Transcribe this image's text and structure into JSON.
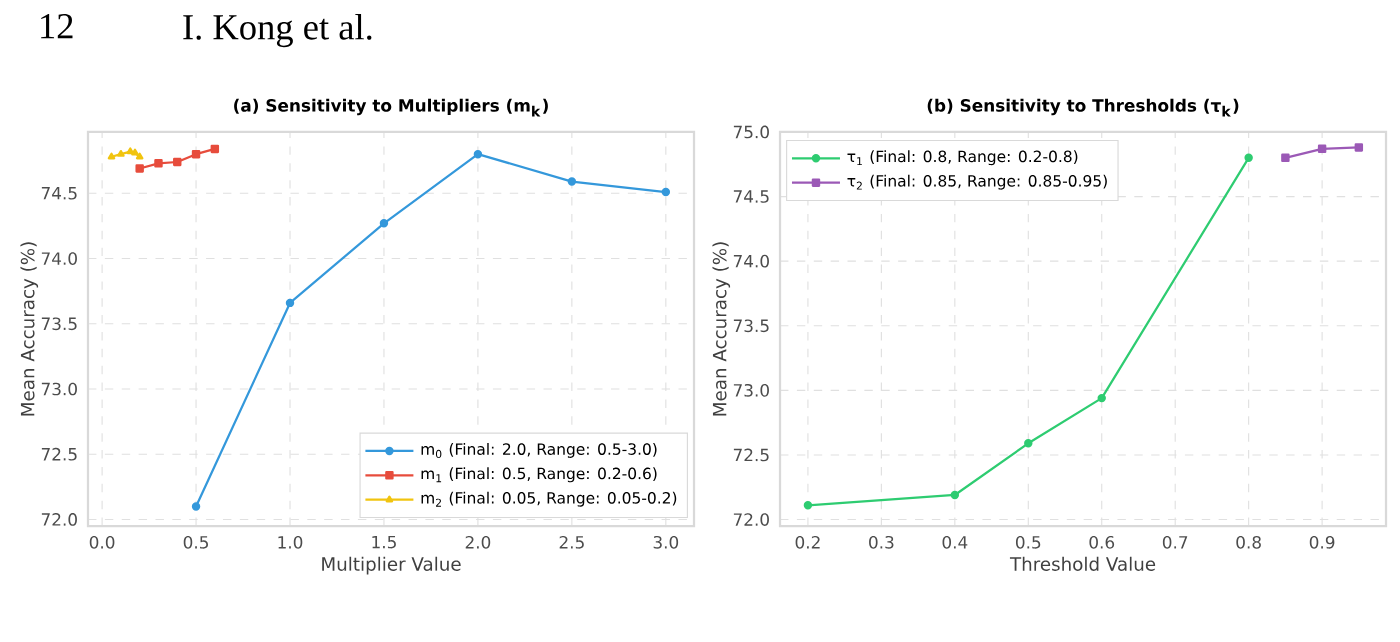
{
  "chart_data": [
    {
      "type": "line",
      "title": "(a) Sensitivity to Multipliers (m$_{k}$)",
      "xlabel": "Multiplier Value",
      "ylabel": "Mean Accuracy (%)",
      "annotations": [
        "12",
        "I. Kong et al."
      ],
      "xlim": [
        -0.075,
        3.15
      ],
      "ylim": [
        71.95,
        74.97
      ],
      "xticks": [
        {
          "value": 0,
          "label": "0.0"
        },
        0.5,
        {
          "value": 1,
          "label": "1.0"
        },
        1.5,
        {
          "value": 2,
          "label": "2.0"
        },
        2.5,
        {
          "value": 3,
          "label": "3.0"
        }
      ],
      "yticks": [
        {
          "value": 72,
          "label": "72.0"
        },
        72.5,
        {
          "value": 73,
          "label": "73.0"
        },
        73.5,
        {
          "value": 74,
          "label": "74.0"
        },
        74.5
      ],
      "grid": true,
      "legend": "bottom right",
      "series": [
        {
          "name": "m$_{0}$ (Final: 2.0, Range: 0.5-3.0)",
          "color": "#3498db",
          "marker": "circle",
          "x": [
            0.5,
            1.0,
            1.5,
            2.0,
            2.5,
            3.0
          ],
          "values": [
            72.1,
            73.66,
            74.27,
            74.8,
            74.59,
            74.51
          ]
        },
        {
          "name": "m$_{1}$ (Final: 0.5, Range: 0.2-0.6)",
          "color": "#e74c3c",
          "marker": "square",
          "x": [
            0.2,
            0.3,
            0.4,
            0.5,
            0.6
          ],
          "values": [
            74.69,
            74.73,
            74.74,
            74.8,
            74.84
          ]
        },
        {
          "name": "m$_{2}$ (Final: 0.05, Range: 0.05-0.2)",
          "color": "#f1c40f",
          "marker": "triangle",
          "x": [
            0.05,
            0.1,
            0.15,
            0.175,
            0.2
          ],
          "values": [
            74.78,
            74.8,
            74.82,
            74.81,
            74.78
          ]
        }
      ]
    },
    {
      "type": "line",
      "title": "(b) Sensitivity to Thresholds (τ$_{k}$)",
      "xlabel": "Threshold Value",
      "ylabel": "Mean Accuracy (%)",
      "xlim": [
        0.162,
        0.987
      ],
      "ylim": [
        71.95,
        75.0
      ],
      "xticks": [
        0.2,
        0.3,
        0.4,
        0.5,
        0.6,
        0.7,
        0.8,
        0.9
      ],
      "yticks": [
        {
          "value": 72,
          "label": "72.0"
        },
        72.5,
        {
          "value": 73,
          "label": "73.0"
        },
        73.5,
        {
          "value": 74,
          "label": "74.0"
        },
        74.5,
        {
          "value": 75,
          "label": "75.0"
        }
      ],
      "grid": true,
      "legend": "top left",
      "series": [
        {
          "name": "τ$_{1}$ (Final: 0.8, Range: 0.2-0.8)",
          "color": "#2ecc71",
          "marker": "circle",
          "x": [
            0.2,
            0.4,
            0.5,
            0.6,
            0.8
          ],
          "values": [
            72.11,
            72.19,
            72.59,
            72.94,
            74.8
          ]
        },
        {
          "name": "τ$_{2}$ (Final: 0.85, Range: 0.85-0.95)",
          "color": "#9b59b6",
          "marker": "square",
          "x": [
            0.85,
            0.9,
            0.95
          ],
          "values": [
            74.8,
            74.87,
            74.88
          ]
        }
      ]
    }
  ]
}
